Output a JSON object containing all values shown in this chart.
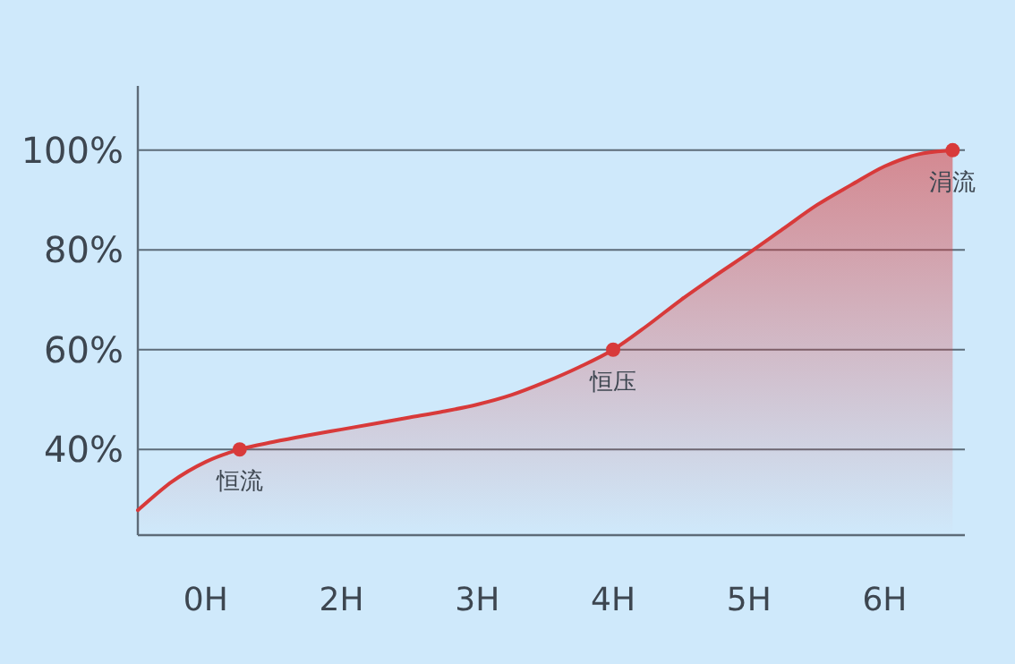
{
  "chart_data": {
    "type": "area",
    "categories": [
      null,
      null,
      "0H",
      null,
      null,
      null,
      "2H",
      null,
      null,
      null,
      "3H",
      null,
      null,
      null,
      "4H",
      null,
      null,
      null,
      "5H",
      null,
      null,
      null,
      "6H",
      null,
      null
    ],
    "series": [
      {
        "color": "#d83a3a",
        "values": [
          27.8,
          33.5,
          37.5,
          40,
          41.5,
          42.8,
          44,
          45.2,
          46.4,
          47.6,
          49,
          50.9,
          53.5,
          56.5,
          60,
          64.8,
          70,
          74.8,
          79.4,
          84.2,
          89,
          93,
          96.8,
          99.2,
          100
        ]
      },
      {
        "type": "scatter",
        "marker": "circle",
        "color": "#d83a3a",
        "values": [
          null,
          null,
          null,
          40,
          null,
          null,
          null,
          null,
          null,
          null,
          null,
          null,
          null,
          null,
          60,
          null,
          null,
          null,
          null,
          null,
          null,
          null,
          null,
          null,
          100
        ]
      }
    ],
    "ylim": [
      22.8,
      112.9
    ],
    "yticks": [
      {
        "value": 40,
        "label": "40%"
      },
      {
        "value": 60,
        "label": "60%"
      },
      {
        "value": 80,
        "label": "80%"
      },
      {
        "value": 100,
        "label": "100%"
      }
    ],
    "grid": "y",
    "annotations": [
      "恒流",
      "恒压",
      "涓流"
    ]
  }
}
